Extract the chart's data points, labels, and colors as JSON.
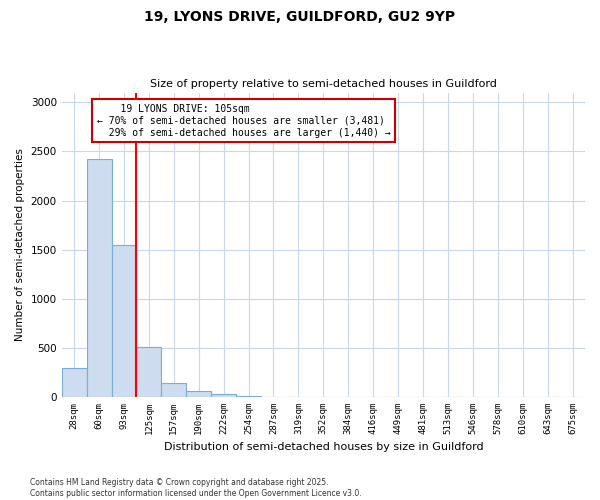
{
  "title_line1": "19, LYONS DRIVE, GUILDFORD, GU2 9YP",
  "title_line2": "Size of property relative to semi-detached houses in Guildford",
  "xlabel": "Distribution of semi-detached houses by size in Guildford",
  "ylabel": "Number of semi-detached properties",
  "bin_labels": [
    "28sqm",
    "60sqm",
    "93sqm",
    "125sqm",
    "157sqm",
    "190sqm",
    "222sqm",
    "254sqm",
    "287sqm",
    "319sqm",
    "352sqm",
    "384sqm",
    "416sqm",
    "449sqm",
    "481sqm",
    "513sqm",
    "546sqm",
    "578sqm",
    "610sqm",
    "643sqm",
    "675sqm"
  ],
  "bar_heights": [
    295,
    2420,
    1550,
    510,
    145,
    58,
    28,
    8,
    0,
    0,
    0,
    0,
    0,
    0,
    0,
    0,
    0,
    0,
    0,
    0,
    0
  ],
  "bar_color": "#cddcee",
  "bar_edge_color": "#7aadd4",
  "red_line_x": 2.5,
  "red_line_label": "19 LYONS DRIVE: 105sqm",
  "pct_smaller": "70%",
  "pct_smaller_n": "3,481",
  "pct_larger": "29%",
  "pct_larger_n": "1,440",
  "annotation_box_color": "#ffffff",
  "annotation_box_edge": "#cc0000",
  "ylim": [
    0,
    3100
  ],
  "yticks": [
    0,
    500,
    1000,
    1500,
    2000,
    2500,
    3000
  ],
  "footnote_line1": "Contains HM Land Registry data © Crown copyright and database right 2025.",
  "footnote_line2": "Contains public sector information licensed under the Open Government Licence v3.0.",
  "background_color": "#ffffff",
  "grid_color": "#c8d8e8"
}
